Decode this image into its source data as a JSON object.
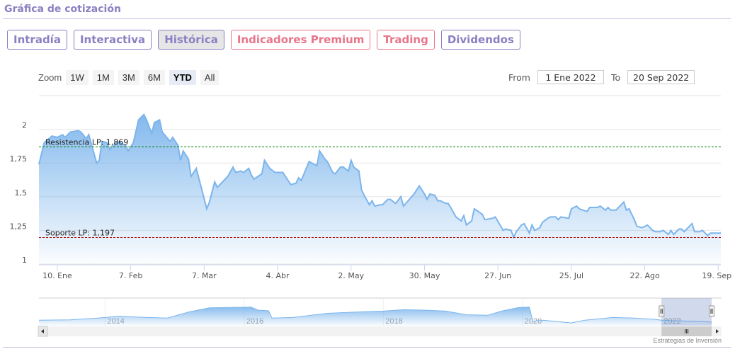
{
  "header": {
    "title": "Gráfica de cotización"
  },
  "tabs": [
    {
      "label": "Intradía",
      "style": "normal"
    },
    {
      "label": "Interactiva",
      "style": "normal"
    },
    {
      "label": "Histórica",
      "style": "active"
    },
    {
      "label": "Indicadores Premium",
      "style": "red"
    },
    {
      "label": "Trading",
      "style": "red"
    },
    {
      "label": "Dividendos",
      "style": "normal"
    }
  ],
  "zoom": {
    "label": "Zoom",
    "options": [
      "1W",
      "1M",
      "3M",
      "6M",
      "YTD",
      "All"
    ],
    "selected": "YTD"
  },
  "range": {
    "from_label": "From",
    "from_value": "1 Ene 2022",
    "to_label": "To",
    "to_value": "20 Sep 2022"
  },
  "credit": "Estrategias de Inversión",
  "colors": {
    "accent": "#8a80c2",
    "red": "#e8768a",
    "series": "#7cb5ec",
    "resistance": "#008000",
    "support": "#b00000"
  },
  "chart_data": {
    "type": "area",
    "ylim": [
      1,
      2.25
    ],
    "yticks": [
      1,
      1.25,
      1.5,
      1.75,
      2
    ],
    "ytick_labels": [
      "1",
      "1,25",
      "1,5",
      "1,75",
      "2"
    ],
    "xlim": [
      "2022-01-03",
      "2022-09-20"
    ],
    "xticks": [
      "2022-01-10",
      "2022-02-07",
      "2022-03-07",
      "2022-04-04",
      "2022-05-02",
      "2022-05-30",
      "2022-06-27",
      "2022-07-25",
      "2022-08-22",
      "2022-09-19"
    ],
    "xtick_labels": [
      "10. Ene",
      "7. Feb",
      "7. Mar",
      "4. Abr",
      "2. May",
      "30. May",
      "27. Jun",
      "25. Jul",
      "22. Ago",
      "19. Sep"
    ],
    "grid": true,
    "plot_lines": [
      {
        "label": "Resistencia LP: 1,869",
        "value": 1.869,
        "color": "#008000"
      },
      {
        "label": "Soporte LP: 1,197",
        "value": 1.197,
        "color": "#b00000"
      }
    ],
    "series": [
      [
        "2022-01-03",
        1.74
      ],
      [
        "2022-01-05",
        1.9
      ],
      [
        "2022-01-08",
        1.95
      ],
      [
        "2022-01-10",
        1.94
      ],
      [
        "2022-01-12",
        1.96
      ],
      [
        "2022-01-13",
        1.94
      ],
      [
        "2022-01-15",
        1.98
      ],
      [
        "2022-01-18",
        1.99
      ],
      [
        "2022-01-19",
        1.98
      ],
      [
        "2022-01-21",
        1.93
      ],
      [
        "2022-01-22",
        1.96
      ],
      [
        "2022-01-23",
        1.89
      ],
      [
        "2022-01-25",
        1.75
      ],
      [
        "2022-01-26",
        1.77
      ],
      [
        "2022-01-27",
        1.91
      ],
      [
        "2022-01-29",
        1.9
      ],
      [
        "2022-01-30",
        1.85
      ],
      [
        "2022-02-02",
        1.91
      ],
      [
        "2022-02-05",
        1.88
      ],
      [
        "2022-02-06",
        1.84
      ],
      [
        "2022-02-08",
        1.9
      ],
      [
        "2022-02-10",
        2.07
      ],
      [
        "2022-02-12",
        2.11
      ],
      [
        "2022-02-13",
        2.07
      ],
      [
        "2022-02-15",
        1.97
      ],
      [
        "2022-02-16",
        2.05
      ],
      [
        "2022-02-18",
        2.07
      ],
      [
        "2022-02-19",
        1.98
      ],
      [
        "2022-02-22",
        1.91
      ],
      [
        "2022-02-23",
        1.94
      ],
      [
        "2022-02-25",
        1.88
      ],
      [
        "2022-02-26",
        1.77
      ],
      [
        "2022-02-27",
        1.84
      ],
      [
        "2022-03-01",
        1.78
      ],
      [
        "2022-03-02",
        1.65
      ],
      [
        "2022-03-04",
        1.71
      ],
      [
        "2022-03-08",
        1.41
      ],
      [
        "2022-03-09",
        1.46
      ],
      [
        "2022-03-11",
        1.61
      ],
      [
        "2022-03-12",
        1.57
      ],
      [
        "2022-03-13",
        1.59
      ],
      [
        "2022-03-15",
        1.63
      ],
      [
        "2022-03-16",
        1.65
      ],
      [
        "2022-03-18",
        1.72
      ],
      [
        "2022-03-19",
        1.68
      ],
      [
        "2022-03-21",
        1.69
      ],
      [
        "2022-03-22",
        1.68
      ],
      [
        "2022-03-24",
        1.71
      ],
      [
        "2022-03-25",
        1.66
      ],
      [
        "2022-03-26",
        1.63
      ],
      [
        "2022-03-29",
        1.67
      ],
      [
        "2022-03-30",
        1.77
      ],
      [
        "2022-04-01",
        1.71
      ],
      [
        "2022-04-03",
        1.68
      ],
      [
        "2022-04-06",
        1.68
      ],
      [
        "2022-04-08",
        1.62
      ],
      [
        "2022-04-09",
        1.59
      ],
      [
        "2022-04-11",
        1.6
      ],
      [
        "2022-04-12",
        1.64
      ],
      [
        "2022-04-13",
        1.62
      ],
      [
        "2022-04-16",
        1.76
      ],
      [
        "2022-04-18",
        1.74
      ],
      [
        "2022-04-19",
        1.73
      ],
      [
        "2022-04-20",
        1.84
      ],
      [
        "2022-04-22",
        1.78
      ],
      [
        "2022-04-23",
        1.76
      ],
      [
        "2022-04-25",
        1.68
      ],
      [
        "2022-04-26",
        1.67
      ],
      [
        "2022-04-28",
        1.72
      ],
      [
        "2022-04-29",
        1.72
      ],
      [
        "2022-05-01",
        1.69
      ],
      [
        "2022-05-02",
        1.77
      ],
      [
        "2022-05-03",
        1.72
      ],
      [
        "2022-05-05",
        1.69
      ],
      [
        "2022-05-06",
        1.55
      ],
      [
        "2022-05-07",
        1.51
      ],
      [
        "2022-05-09",
        1.44
      ],
      [
        "2022-05-10",
        1.47
      ],
      [
        "2022-05-11",
        1.43
      ],
      [
        "2022-05-13",
        1.44
      ],
      [
        "2022-05-14",
        1.44
      ],
      [
        "2022-05-16",
        1.48
      ],
      [
        "2022-05-17",
        1.48
      ],
      [
        "2022-05-19",
        1.45
      ],
      [
        "2022-05-21",
        1.5
      ],
      [
        "2022-05-22",
        1.43
      ],
      [
        "2022-05-26",
        1.52
      ],
      [
        "2022-05-27",
        1.55
      ],
      [
        "2022-05-28",
        1.58
      ],
      [
        "2022-05-30",
        1.52
      ],
      [
        "2022-05-31",
        1.48
      ],
      [
        "2022-06-01",
        1.52
      ],
      [
        "2022-06-03",
        1.51
      ],
      [
        "2022-06-04",
        1.47
      ],
      [
        "2022-06-05",
        1.47
      ],
      [
        "2022-06-07",
        1.45
      ],
      [
        "2022-06-08",
        1.45
      ],
      [
        "2022-06-09",
        1.42
      ],
      [
        "2022-06-11",
        1.35
      ],
      [
        "2022-06-13",
        1.32
      ],
      [
        "2022-06-14",
        1.36
      ],
      [
        "2022-06-15",
        1.29
      ],
      [
        "2022-06-17",
        1.32
      ],
      [
        "2022-06-18",
        1.41
      ],
      [
        "2022-06-21",
        1.37
      ],
      [
        "2022-06-22",
        1.33
      ],
      [
        "2022-06-25",
        1.34
      ],
      [
        "2022-06-26",
        1.35
      ],
      [
        "2022-06-29",
        1.25
      ],
      [
        "2022-06-30",
        1.26
      ],
      [
        "2022-07-02",
        1.25
      ],
      [
        "2022-07-03",
        1.2
      ],
      [
        "2022-07-04",
        1.24
      ],
      [
        "2022-07-06",
        1.29
      ],
      [
        "2022-07-07",
        1.3
      ],
      [
        "2022-07-09",
        1.23
      ],
      [
        "2022-07-10",
        1.29
      ],
      [
        "2022-07-11",
        1.25
      ],
      [
        "2022-07-13",
        1.27
      ],
      [
        "2022-07-14",
        1.31
      ],
      [
        "2022-07-16",
        1.34
      ],
      [
        "2022-07-17",
        1.35
      ],
      [
        "2022-07-19",
        1.35
      ],
      [
        "2022-07-20",
        1.33
      ],
      [
        "2022-07-21",
        1.35
      ],
      [
        "2022-07-24",
        1.34
      ],
      [
        "2022-07-25",
        1.41
      ],
      [
        "2022-07-27",
        1.43
      ],
      [
        "2022-07-28",
        1.41
      ],
      [
        "2022-07-31",
        1.39
      ],
      [
        "2022-08-01",
        1.42
      ],
      [
        "2022-08-04",
        1.42
      ],
      [
        "2022-08-05",
        1.43
      ],
      [
        "2022-08-07",
        1.4
      ],
      [
        "2022-08-08",
        1.42
      ],
      [
        "2022-08-09",
        1.4
      ],
      [
        "2022-08-11",
        1.4
      ],
      [
        "2022-08-14",
        1.46
      ],
      [
        "2022-08-15",
        1.4
      ],
      [
        "2022-08-16",
        1.41
      ],
      [
        "2022-08-18",
        1.33
      ],
      [
        "2022-08-19",
        1.28
      ],
      [
        "2022-08-21",
        1.27
      ],
      [
        "2022-08-23",
        1.29
      ],
      [
        "2022-08-25",
        1.25
      ],
      [
        "2022-08-26",
        1.24
      ],
      [
        "2022-08-28",
        1.24
      ],
      [
        "2022-08-29",
        1.25
      ],
      [
        "2022-08-31",
        1.22
      ],
      [
        "2022-09-01",
        1.25
      ],
      [
        "2022-09-02",
        1.22
      ],
      [
        "2022-09-04",
        1.26
      ],
      [
        "2022-09-05",
        1.26
      ],
      [
        "2022-09-06",
        1.24
      ],
      [
        "2022-09-09",
        1.3
      ],
      [
        "2022-09-10",
        1.24
      ],
      [
        "2022-09-12",
        1.24
      ],
      [
        "2022-09-13",
        1.25
      ],
      [
        "2022-09-15",
        1.21
      ],
      [
        "2022-09-16",
        1.23
      ],
      [
        "2022-09-20",
        1.23
      ]
    ],
    "navigator": {
      "xtick_labels": [
        "2014",
        "2016",
        "2018",
        "2020",
        "2022"
      ],
      "selected_range": [
        "2022-01-01",
        "2022-09-20"
      ],
      "series": [
        [
          2013.05,
          1.0
        ],
        [
          2013.5,
          1.02
        ],
        [
          2013.9,
          1.12
        ],
        [
          2014.2,
          1.22
        ],
        [
          2014.6,
          1.15
        ],
        [
          2014.9,
          1.12
        ],
        [
          2015.2,
          1.45
        ],
        [
          2015.5,
          1.68
        ],
        [
          2015.8,
          1.7
        ],
        [
          2016.1,
          1.72
        ],
        [
          2016.2,
          1.55
        ],
        [
          2016.35,
          1.52
        ],
        [
          2016.4,
          1.12
        ],
        [
          2016.7,
          1.15
        ],
        [
          2017.2,
          1.38
        ],
        [
          2017.6,
          1.45
        ],
        [
          2018.0,
          1.5
        ],
        [
          2018.3,
          1.58
        ],
        [
          2018.6,
          1.55
        ],
        [
          2018.9,
          1.5
        ],
        [
          2019.2,
          1.3
        ],
        [
          2019.5,
          1.27
        ],
        [
          2019.7,
          1.5
        ],
        [
          2019.95,
          1.7
        ],
        [
          2020.1,
          1.72
        ],
        [
          2020.15,
          0.95
        ],
        [
          2020.3,
          1.0
        ],
        [
          2020.7,
          0.85
        ],
        [
          2020.9,
          1.0
        ],
        [
          2021.3,
          1.15
        ],
        [
          2021.6,
          1.12
        ],
        [
          2021.9,
          1.05
        ],
        [
          2022.0,
          1.0
        ],
        [
          2022.4,
          0.95
        ],
        [
          2022.72,
          0.9
        ]
      ]
    }
  }
}
